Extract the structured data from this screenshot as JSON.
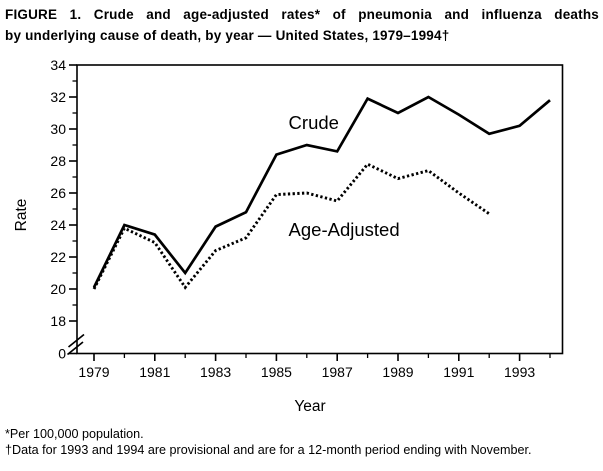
{
  "figure": {
    "title_line1": "FIGURE 1. Crude and age-adjusted rates* of pneumonia and influenza deaths",
    "title_line2": "by underlying cause of death, by year — United States, 1979–1994†",
    "footnote1": "*Per 100,000 population.",
    "footnote2": "†Data for 1993 and 1994 are provisional and are for a 12-month period ending with November."
  },
  "colors": {
    "ink": "#000000",
    "background": "#ffffff"
  },
  "chart_data": {
    "type": "line",
    "title": "",
    "xlabel": "Year",
    "ylabel": "Rate",
    "x": [
      1979,
      1980,
      1981,
      1982,
      1983,
      1984,
      1985,
      1986,
      1987,
      1988,
      1989,
      1990,
      1991,
      1992,
      1993,
      1994
    ],
    "series": [
      {
        "name": "Crude",
        "line_style": "solid",
        "values": [
          20.1,
          24.0,
          23.4,
          21.0,
          23.9,
          24.8,
          28.4,
          29.0,
          28.6,
          31.9,
          31.0,
          32.0,
          30.9,
          29.7,
          30.2,
          31.8
        ]
      },
      {
        "name": "Age-Adjusted",
        "line_style": "dotted",
        "values": [
          20.0,
          23.8,
          22.9,
          20.1,
          22.4,
          23.2,
          25.9,
          26.0,
          25.5,
          27.8,
          26.9,
          27.4,
          26.0,
          24.7
        ]
      }
    ],
    "annotations": [
      {
        "text": "Crude",
        "x": 1985.4,
        "y": 30.0
      },
      {
        "text": "Age-Adjusted",
        "x": 1985.4,
        "y": 23.3
      }
    ],
    "y_axis": {
      "label": "Rate",
      "ticks_labeled": [
        34,
        32,
        30,
        28,
        26,
        24,
        22,
        20,
        18,
        0
      ],
      "ticks_minor": [
        33,
        31,
        29,
        27,
        25,
        23,
        21,
        19
      ],
      "range_shown": [
        18,
        34
      ],
      "axis_break_below": 18
    },
    "x_axis": {
      "label": "Year",
      "ticks_labeled": [
        1979,
        1981,
        1983,
        1985,
        1987,
        1989,
        1991,
        1993
      ],
      "ticks_minor": [
        1980,
        1982,
        1984,
        1986,
        1988,
        1990,
        1992,
        1994
      ],
      "range": [
        1979,
        1994
      ]
    },
    "grid": false,
    "legend": "inline-labels"
  }
}
